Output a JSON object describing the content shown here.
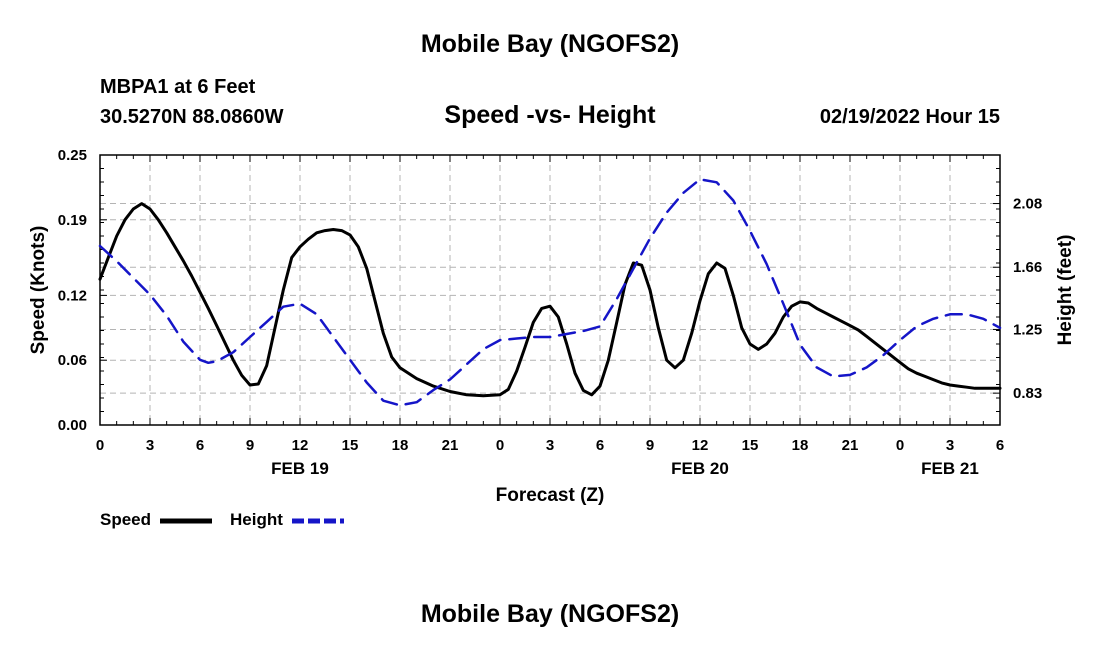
{
  "header": {
    "title": "Mobile Bay (NGOFS2)",
    "station": "MBPA1 at 6 Feet",
    "coords": "30.5270N  88.0860W",
    "subtitle": "Speed -vs- Height",
    "datetime": "02/19/2022 Hour 15"
  },
  "footer": {
    "title": "Mobile Bay (NGOFS2)"
  },
  "colors": {
    "speed": "#000000",
    "height": "#1515c8",
    "grid": "#b4b4b4"
  },
  "chart_data": {
    "type": "line",
    "title": "Speed -vs- Height",
    "xlabel": "Forecast (Z)",
    "ylabel": "Speed (Knots)",
    "y2label": "Height (feet)",
    "xlim": [
      0,
      54
    ],
    "ylim": [
      0,
      0.25
    ],
    "y2lim": [
      0.62,
      2.4
    ],
    "x_ticks": [
      0,
      3,
      6,
      9,
      12,
      15,
      18,
      21,
      24,
      27,
      30,
      33,
      36,
      39,
      42,
      45,
      48,
      51,
      54
    ],
    "x_tick_labels": [
      "0",
      "3",
      "6",
      "9",
      "12",
      "15",
      "18",
      "21",
      "0",
      "3",
      "6",
      "9",
      "12",
      "15",
      "18",
      "21",
      "0",
      "3",
      "6"
    ],
    "date_labels": [
      {
        "x": 12,
        "label": "FEB 19"
      },
      {
        "x": 36,
        "label": "FEB 20"
      },
      {
        "x": 51,
        "label": "FEB 21"
      }
    ],
    "y_ticks": [
      0.0,
      0.06,
      0.12,
      0.19,
      0.25
    ],
    "y_tick_labels": [
      "0.00",
      "0.06",
      "0.12",
      "0.19",
      "0.25"
    ],
    "y2_ticks": [
      0.83,
      1.25,
      1.66,
      2.08
    ],
    "y2_tick_labels": [
      "0.83",
      "1.25",
      "1.66",
      "2.08"
    ],
    "grid": true,
    "legend": [
      {
        "name": "Speed",
        "style": "solid"
      },
      {
        "name": "Height",
        "style": "dashed"
      }
    ],
    "series": [
      {
        "name": "Speed",
        "axis": "left",
        "x": [
          0,
          0.5,
          1,
          1.5,
          2,
          2.5,
          3,
          3.5,
          4,
          4.5,
          5,
          5.5,
          6,
          6.5,
          7,
          7.5,
          8,
          8.5,
          9,
          9.5,
          10,
          10.5,
          11,
          11.5,
          12,
          12.5,
          13,
          13.5,
          14,
          14.5,
          15,
          15.5,
          16,
          16.5,
          17,
          17.5,
          18,
          19,
          20,
          21,
          22,
          23,
          24,
          24.5,
          25,
          25.5,
          26,
          26.5,
          27,
          27.5,
          28,
          28.5,
          29,
          29.5,
          30,
          30.5,
          31,
          31.5,
          32,
          32.5,
          33,
          33.5,
          34,
          34.5,
          35,
          35.5,
          36,
          36.5,
          37,
          37.5,
          38,
          38.5,
          39,
          39.5,
          40,
          40.5,
          41,
          41.5,
          42,
          42.5,
          43,
          43.5,
          44,
          44.5,
          45,
          45.5,
          46,
          46.5,
          47,
          47.5,
          48,
          48.5,
          49,
          49.5,
          50,
          50.5,
          51,
          51.5,
          52,
          52.5,
          53,
          53.5,
          54
        ],
        "values": [
          0.135,
          0.155,
          0.175,
          0.19,
          0.2,
          0.205,
          0.2,
          0.19,
          0.178,
          0.165,
          0.152,
          0.138,
          0.123,
          0.108,
          0.092,
          0.076,
          0.06,
          0.046,
          0.037,
          0.038,
          0.055,
          0.09,
          0.125,
          0.155,
          0.165,
          0.172,
          0.178,
          0.18,
          0.181,
          0.18,
          0.176,
          0.165,
          0.145,
          0.115,
          0.085,
          0.063,
          0.053,
          0.043,
          0.036,
          0.031,
          0.028,
          0.027,
          0.028,
          0.033,
          0.05,
          0.072,
          0.095,
          0.108,
          0.11,
          0.1,
          0.075,
          0.048,
          0.032,
          0.028,
          0.036,
          0.06,
          0.095,
          0.13,
          0.15,
          0.148,
          0.125,
          0.09,
          0.06,
          0.053,
          0.06,
          0.085,
          0.115,
          0.14,
          0.15,
          0.145,
          0.12,
          0.09,
          0.075,
          0.07,
          0.075,
          0.085,
          0.1,
          0.11,
          0.114,
          0.113,
          0.108,
          0.104,
          0.1,
          0.096,
          0.092,
          0.088,
          0.082,
          0.076,
          0.07,
          0.064,
          0.058,
          0.052,
          0.048,
          0.045,
          0.042,
          0.039,
          0.037,
          0.036,
          0.035,
          0.034,
          0.034,
          0.034,
          0.034
        ]
      },
      {
        "name": "Height",
        "axis": "right",
        "x": [
          0,
          1,
          2,
          3,
          4,
          5,
          6,
          6.5,
          7,
          8,
          9,
          10,
          11,
          12,
          13,
          14,
          15,
          16,
          17,
          18,
          19,
          20,
          21,
          22,
          23,
          24,
          25,
          26,
          27,
          28,
          29,
          30,
          31,
          32,
          33,
          34,
          35,
          36,
          37,
          38,
          39,
          40,
          41,
          42,
          43,
          44,
          45,
          46,
          47,
          48,
          49,
          50,
          51,
          52,
          53,
          54
        ],
        "values": [
          1.8,
          1.7,
          1.59,
          1.48,
          1.34,
          1.17,
          1.05,
          1.03,
          1.04,
          1.1,
          1.2,
          1.3,
          1.4,
          1.42,
          1.35,
          1.2,
          1.05,
          0.9,
          0.78,
          0.75,
          0.77,
          0.85,
          0.92,
          1.02,
          1.12,
          1.18,
          1.19,
          1.2,
          1.2,
          1.22,
          1.24,
          1.27,
          1.45,
          1.65,
          1.85,
          2.02,
          2.15,
          2.24,
          2.22,
          2.1,
          1.9,
          1.68,
          1.42,
          1.15,
          1.0,
          0.94,
          0.95,
          1.0,
          1.08,
          1.18,
          1.27,
          1.32,
          1.35,
          1.35,
          1.32,
          1.26
        ]
      }
    ]
  }
}
